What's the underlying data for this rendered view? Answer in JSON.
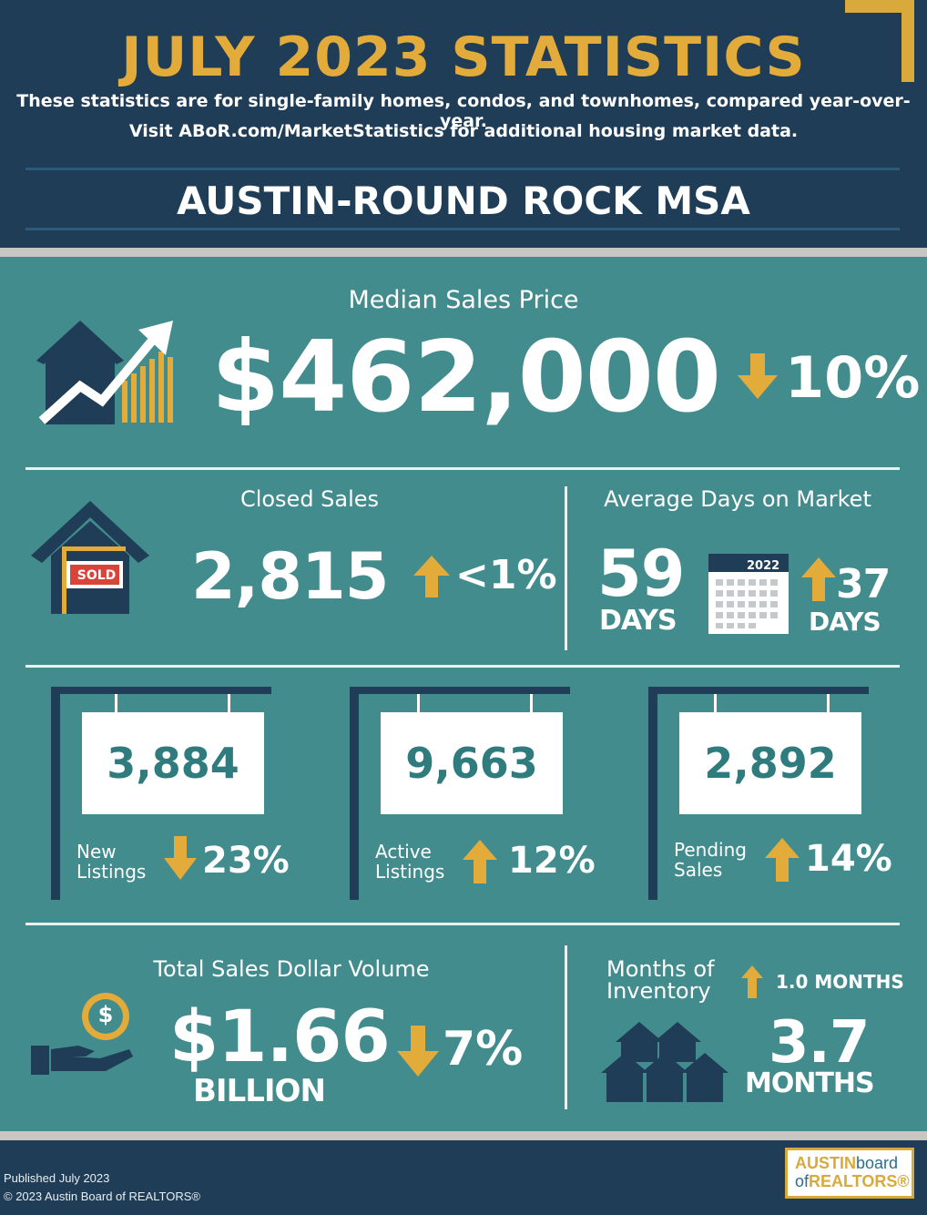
{
  "header": {
    "title": "JULY 2023 STATISTICS",
    "subtitle_line1": "These statistics are for single-family homes, condos, and townhomes, compared year-over-year.",
    "subtitle_line2": "Visit ABoR.com/MarketStatistics for additional housing market data.",
    "region": "AUSTIN-ROUND ROCK MSA"
  },
  "median_price": {
    "label": "Median Sales Price",
    "value": "$462,000",
    "change": "10%",
    "direction": "down"
  },
  "closed_sales": {
    "label": "Closed Sales",
    "value": "2,815",
    "change": "<1%",
    "direction": "up",
    "sign_text": "SOLD"
  },
  "days_on_market": {
    "label": "Average Days on Market",
    "value": "59",
    "unit": "DAYS",
    "calendar_year": "2022",
    "change": "37",
    "change_unit": "DAYS",
    "direction": "up"
  },
  "listings": [
    {
      "value": "3,884",
      "label_line1": "New",
      "label_line2": "Listings",
      "change": "23%",
      "direction": "down"
    },
    {
      "value": "9,663",
      "label_line1": "Active",
      "label_line2": "Listings",
      "change": "12%",
      "direction": "up"
    },
    {
      "value": "2,892",
      "label_line1": "Pending",
      "label_line2": "Sales",
      "change": "14%",
      "direction": "up"
    }
  ],
  "volume": {
    "label": "Total Sales Dollar Volume",
    "value": "$1.66",
    "unit": "BILLION",
    "change": "7%",
    "direction": "down",
    "coin_symbol": "$"
  },
  "inventory": {
    "label_line1": "Months of",
    "label_line2": "Inventory",
    "change": "1.0 MONTHS",
    "direction": "up",
    "value": "3.7",
    "unit": "MONTHS"
  },
  "footer": {
    "published": "Published July 2023",
    "copyright": "© 2023 Austin Board of REALTORS®",
    "logo_line1_a": "AUSTIN",
    "logo_line1_b": "board",
    "logo_line2_a": "of",
    "logo_line2_b": "REALTORS®"
  },
  "colors": {
    "navy": "#1f3d57",
    "teal": "#428c8e",
    "gold": "#e3ab3a",
    "white": "#ffffff"
  }
}
